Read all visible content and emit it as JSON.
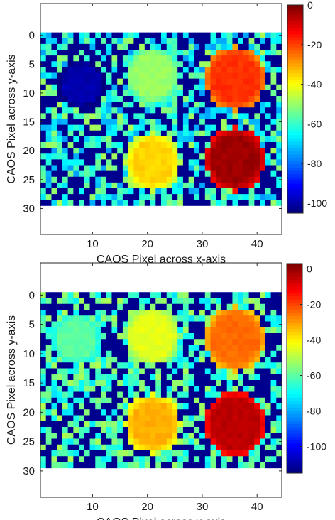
{
  "chart_data": [
    {
      "type": "heatmap",
      "title": "",
      "xlabel": "CAOS Pixel across x-axis",
      "ylabel": "CAOS Pixel across y-axis",
      "x_ticks": [
        10,
        20,
        30,
        40
      ],
      "y_ticks": [
        0,
        5,
        10,
        15,
        20,
        25,
        30
      ],
      "xlim": [
        0.5,
        44.5
      ],
      "ylim": [
        -5.5,
        34.5
      ],
      "y_reversed": true,
      "image_extent_x": [
        0.5,
        44.5
      ],
      "image_extent_y": [
        -0.5,
        29.5
      ],
      "grid_cols": 44,
      "grid_rows": 30,
      "colormap": "jet",
      "background": "#00008f",
      "clim": [
        -105,
        0
      ],
      "colorbar_ticks": [
        0,
        -20,
        -40,
        -60,
        -80,
        -100
      ],
      "colorbar_labels": [
        "0",
        "-20",
        "-40",
        "-60",
        "-80",
        "-100"
      ],
      "noise_level": -62,
      "noise_spread": 14,
      "noise_density": 0.58,
      "blobs": [
        {
          "cx": 36,
          "cy": 7.5,
          "r": 5.5,
          "value": -18
        },
        {
          "cx": 36,
          "cy": 21.5,
          "r": 5.5,
          "value": -3
        },
        {
          "cx": 21,
          "cy": 22,
          "r": 5.0,
          "value": -35
        },
        {
          "cx": 21,
          "cy": 7,
          "r": 5.0,
          "value": -50
        },
        {
          "cx": 8,
          "cy": 8.5,
          "r": 4.5,
          "value": -100
        }
      ]
    },
    {
      "type": "heatmap",
      "title": "",
      "xlabel": "CAOS Pixel across x-axis",
      "ylabel": "CAOS Pixel across y-axis",
      "x_ticks": [
        10,
        20,
        30,
        40
      ],
      "y_ticks": [
        0,
        5,
        10,
        15,
        20,
        25,
        30
      ],
      "xlim": [
        0.5,
        44.5
      ],
      "ylim": [
        -5.5,
        34.5
      ],
      "y_reversed": true,
      "image_extent_x": [
        0.5,
        44.5
      ],
      "image_extent_y": [
        -0.5,
        29.5
      ],
      "grid_cols": 44,
      "grid_rows": 30,
      "colormap": "jet",
      "background": "#00008f",
      "clim": [
        -115,
        3
      ],
      "colorbar_ticks": [
        0,
        -20,
        -40,
        -60,
        -80,
        -100
      ],
      "colorbar_labels": [
        "0",
        "-20",
        "-40",
        "-60",
        "-80",
        "-100"
      ],
      "noise_level": -62,
      "noise_spread": 12,
      "noise_density": 0.55,
      "blobs": [
        {
          "cx": 36,
          "cy": 7.5,
          "r": 5.5,
          "value": -24
        },
        {
          "cx": 36,
          "cy": 22,
          "r": 5.5,
          "value": -4
        },
        {
          "cx": 21,
          "cy": 22,
          "r": 5.0,
          "value": -32
        },
        {
          "cx": 21,
          "cy": 7,
          "r": 5.0,
          "value": -44
        },
        {
          "cx": 7,
          "cy": 7.5,
          "r": 4.5,
          "value": -60
        }
      ]
    }
  ]
}
